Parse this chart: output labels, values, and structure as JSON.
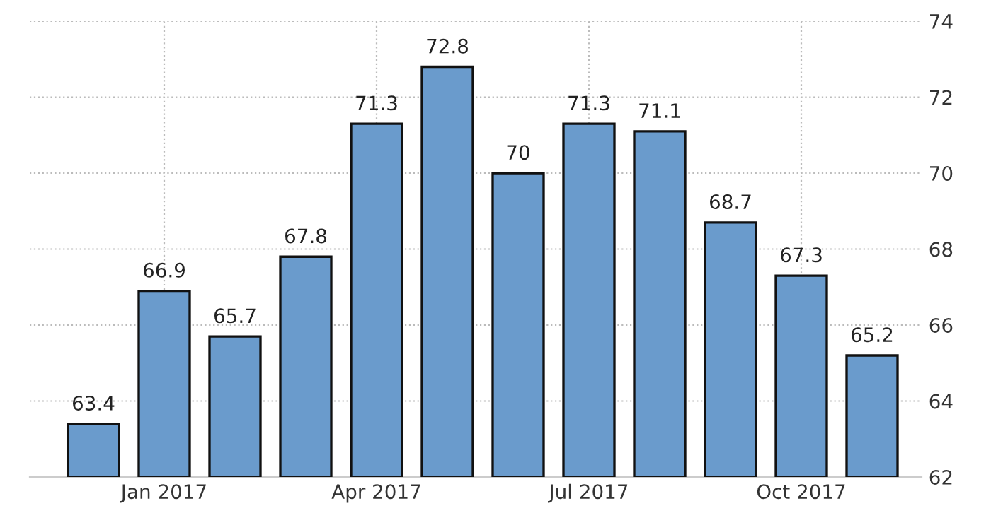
{
  "chart_data": {
    "type": "bar",
    "categories": [
      null,
      "Jan 2017",
      null,
      null,
      "Apr 2017",
      null,
      null,
      "Jul 2017",
      null,
      null,
      "Oct 2017",
      null
    ],
    "values": [
      63.4,
      66.9,
      65.7,
      67.8,
      71.3,
      72.8,
      70,
      71.3,
      71.1,
      68.7,
      67.3,
      65.2
    ],
    "color": "#6a9bcc",
    "ylim": [
      62,
      74
    ],
    "yticks": [
      62,
      64,
      66,
      68,
      70,
      72,
      74
    ],
    "grid": true,
    "data_labels": true
  }
}
